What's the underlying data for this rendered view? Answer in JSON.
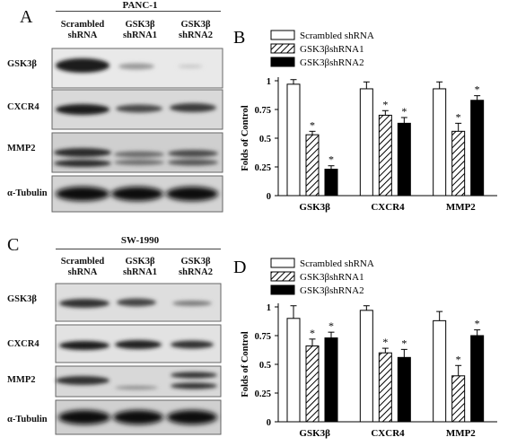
{
  "panels": {
    "A": {
      "letter": "A",
      "cell_line": "PANC-1",
      "lanes": [
        {
          "line1": "Scrambled",
          "line2": "shRNA"
        },
        {
          "line1": "GSK3β",
          "line2": "shRNA1"
        },
        {
          "line1": "GSK3β",
          "line2": "shRNA2"
        }
      ],
      "rows": [
        "GSK3β",
        "CXCR4",
        "MMP2",
        "α-Tubulin"
      ]
    },
    "C": {
      "letter": "C",
      "cell_line": "SW-1990",
      "lanes": [
        {
          "line1": "Scrambled",
          "line2": "shRNA"
        },
        {
          "line1": "GSK3β",
          "line2": "shRNA1"
        },
        {
          "line1": "GSK3β",
          "line2": "shRNA2"
        }
      ],
      "rows": [
        "GSK3β",
        "CXCR4",
        "MMP2",
        "α-Tubulin"
      ]
    },
    "B": {
      "letter": "B"
    },
    "D": {
      "letter": "D"
    }
  },
  "chart_data": [
    {
      "panel": "B",
      "type": "bar",
      "ylabel": "Folds of Control",
      "ylim": [
        0,
        1
      ],
      "yticks": [
        "0",
        "0.25",
        "0.5",
        "0.75",
        "1"
      ],
      "categories": [
        "GSK3β",
        "CXCR4",
        "MMP2"
      ],
      "legend_position": "top-left",
      "series": [
        {
          "name": "Scrambled shRNA",
          "fill": "white",
          "values": [
            0.97,
            0.93,
            0.93
          ],
          "errors": [
            0.04,
            0.06,
            0.06
          ],
          "stars": [
            "",
            "",
            ""
          ]
        },
        {
          "name": "GSK3βshRNA1",
          "fill": "hatched",
          "values": [
            0.53,
            0.7,
            0.56
          ],
          "errors": [
            0.03,
            0.04,
            0.07
          ],
          "stars": [
            "*",
            "*",
            "*"
          ]
        },
        {
          "name": "GSK3βshRNA2",
          "fill": "black",
          "values": [
            0.23,
            0.63,
            0.83
          ],
          "errors": [
            0.03,
            0.05,
            0.04
          ],
          "stars": [
            "*",
            "*",
            "*"
          ]
        }
      ]
    },
    {
      "panel": "D",
      "type": "bar",
      "ylabel": "Folds of Control",
      "ylim": [
        0,
        1
      ],
      "yticks": [
        "0",
        "0.25",
        "0.5",
        "0.75",
        "1"
      ],
      "categories": [
        "GSK3β",
        "CXCR4",
        "MMP2"
      ],
      "legend_position": "top-left",
      "series": [
        {
          "name": "Scrambled shRNA",
          "fill": "white",
          "values": [
            0.9,
            0.97,
            0.88
          ],
          "errors": [
            0.11,
            0.04,
            0.08
          ],
          "stars": [
            "",
            "",
            ""
          ]
        },
        {
          "name": "GSK3βshRNA1",
          "fill": "hatched",
          "values": [
            0.66,
            0.6,
            0.4
          ],
          "errors": [
            0.06,
            0.04,
            0.09
          ],
          "stars": [
            "*",
            "*",
            "*"
          ]
        },
        {
          "name": "GSK3βshRNA2",
          "fill": "black",
          "values": [
            0.73,
            0.56,
            0.75
          ],
          "errors": [
            0.05,
            0.07,
            0.05
          ],
          "stars": [
            "*",
            "*",
            "*"
          ]
        }
      ]
    }
  ]
}
